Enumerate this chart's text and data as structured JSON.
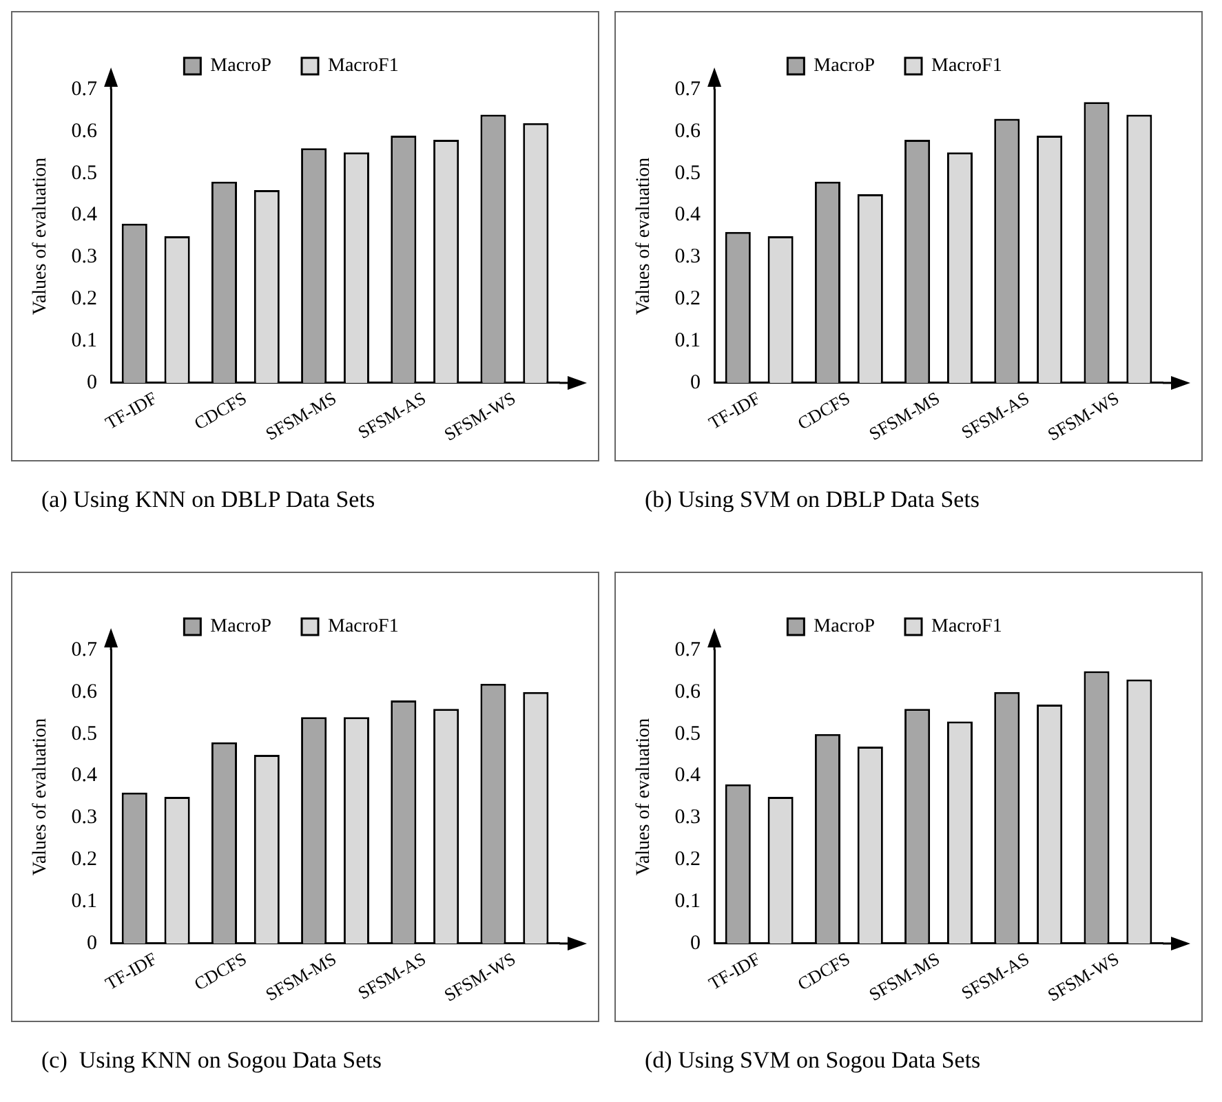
{
  "chart_data": [
    {
      "type": "bar",
      "ylabel": "Values of evaluation",
      "categories": [
        "TF-IDF",
        "CDCFS",
        "SFSM-MS",
        "SFSM-AS",
        "SFSM-WS"
      ],
      "series": [
        {
          "name": "MacroP",
          "color": "#a6a6a6",
          "values": [
            0.38,
            0.48,
            0.56,
            0.59,
            0.64
          ]
        },
        {
          "name": "MacroF1",
          "color": "#d9d9d9",
          "values": [
            0.35,
            0.46,
            0.55,
            0.58,
            0.62
          ]
        }
      ],
      "ylim": [
        0,
        0.7
      ],
      "yticks": [
        0,
        0.1,
        0.2,
        0.3,
        0.4,
        0.5,
        0.6,
        0.7
      ],
      "grid": false,
      "legend": "top",
      "annotations": [
        "(a) Using KNN on DBLP Data Sets"
      ]
    },
    {
      "type": "bar",
      "ylabel": "Values of evaluation",
      "categories": [
        "TF-IDF",
        "CDCFS",
        "SFSM-MS",
        "SFSM-AS",
        "SFSM-WS"
      ],
      "series": [
        {
          "name": "MacroP",
          "color": "#a6a6a6",
          "values": [
            0.36,
            0.48,
            0.58,
            0.63,
            0.67
          ]
        },
        {
          "name": "MacroF1",
          "color": "#d9d9d9",
          "values": [
            0.35,
            0.45,
            0.55,
            0.59,
            0.64
          ]
        }
      ],
      "ylim": [
        0,
        0.7
      ],
      "yticks": [
        0,
        0.1,
        0.2,
        0.3,
        0.4,
        0.5,
        0.6,
        0.7
      ],
      "grid": false,
      "legend": "top",
      "annotations": [
        "(b) Using SVM on DBLP Data Sets"
      ]
    },
    {
      "type": "bar",
      "ylabel": "Values of evaluation",
      "categories": [
        "TF-IDF",
        "CDCFS",
        "SFSM-MS",
        "SFSM-AS",
        "SFSM-WS"
      ],
      "series": [
        {
          "name": "MacroP",
          "color": "#a6a6a6",
          "values": [
            0.36,
            0.48,
            0.54,
            0.58,
            0.62
          ]
        },
        {
          "name": "MacroF1",
          "color": "#d9d9d9",
          "values": [
            0.35,
            0.45,
            0.54,
            0.56,
            0.6
          ]
        }
      ],
      "ylim": [
        0,
        0.7
      ],
      "yticks": [
        0,
        0.1,
        0.2,
        0.3,
        0.4,
        0.5,
        0.6,
        0.7
      ],
      "grid": false,
      "legend": "top",
      "annotations": [
        "(c)  Using KNN on Sogou Data Sets"
      ]
    },
    {
      "type": "bar",
      "ylabel": "Values of evaluation",
      "categories": [
        "TF-IDF",
        "CDCFS",
        "SFSM-MS",
        "SFSM-AS",
        "SFSM-WS"
      ],
      "series": [
        {
          "name": "MacroP",
          "color": "#a6a6a6",
          "values": [
            0.38,
            0.5,
            0.56,
            0.6,
            0.65
          ]
        },
        {
          "name": "MacroF1",
          "color": "#d9d9d9",
          "values": [
            0.35,
            0.47,
            0.53,
            0.57,
            0.63
          ]
        }
      ],
      "ylim": [
        0,
        0.7
      ],
      "yticks": [
        0,
        0.1,
        0.2,
        0.3,
        0.4,
        0.5,
        0.6,
        0.7
      ],
      "grid": false,
      "legend": "top",
      "annotations": [
        "(d) Using SVM on Sogou Data Sets"
      ]
    }
  ]
}
